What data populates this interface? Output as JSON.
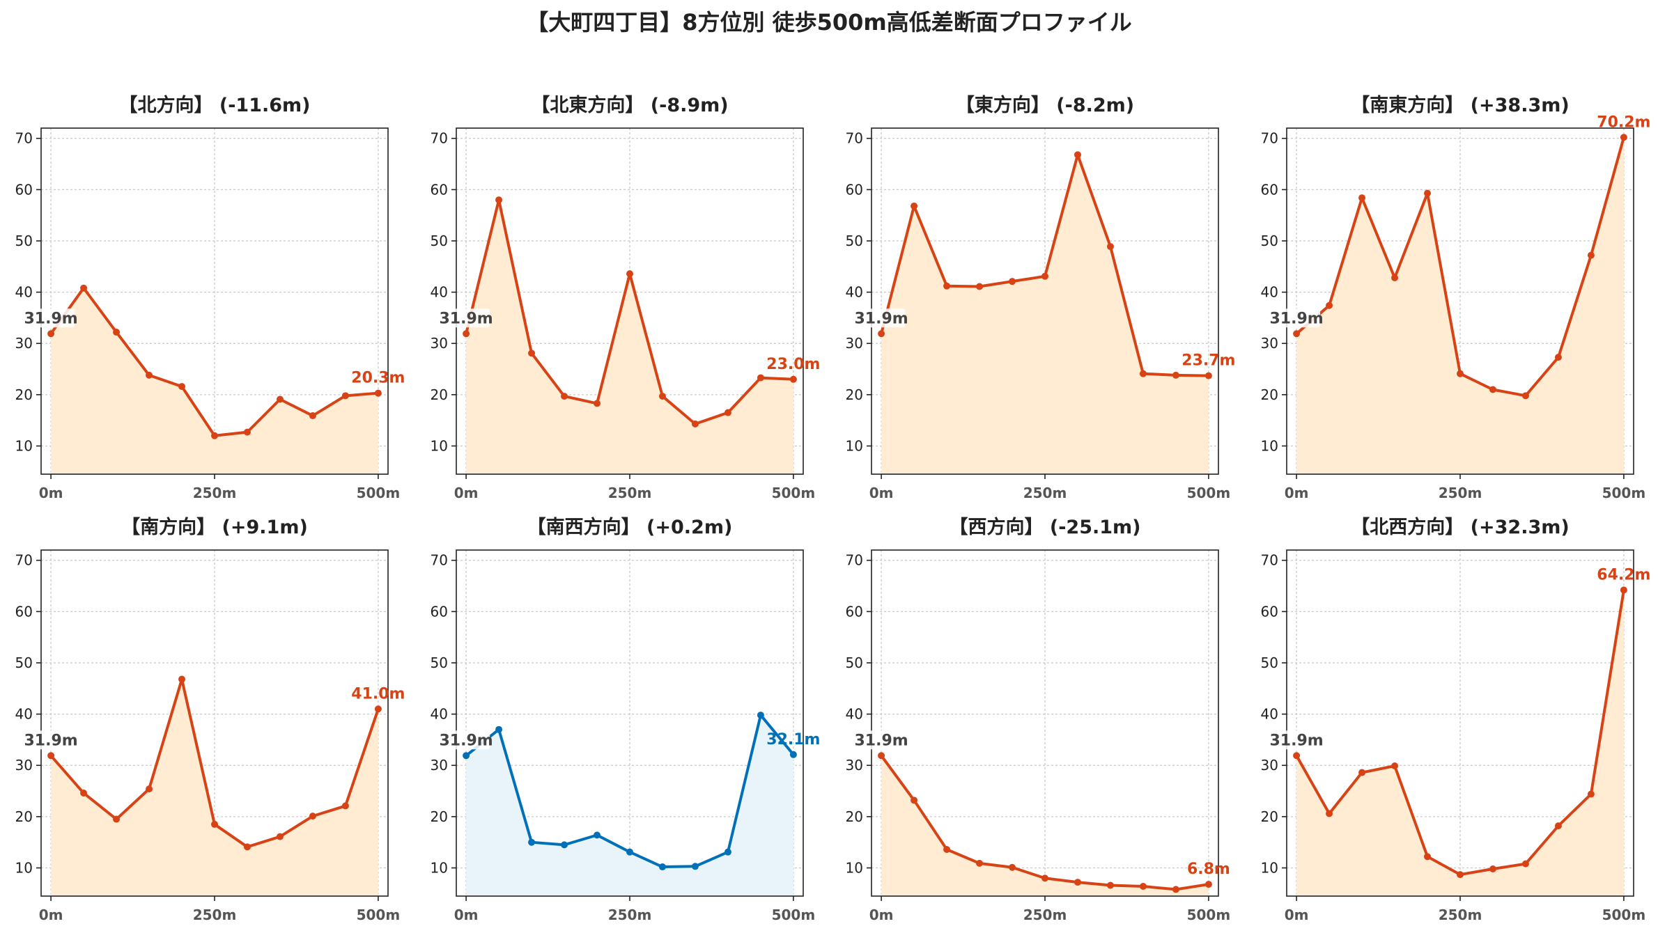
{
  "chart_data": {
    "title": "【大町四丁目】8方位別 徒歩500m高低差断面プロファイル",
    "type": "area",
    "x": [
      0,
      50,
      100,
      150,
      200,
      250,
      300,
      350,
      400,
      450,
      500
    ],
    "x_tick_values": [
      0,
      250,
      500
    ],
    "x_tick_labels": [
      "0m",
      "250m",
      "500m"
    ],
    "xlim": [
      -15,
      515
    ],
    "y_ticks": [
      10,
      20,
      30,
      40,
      50,
      60,
      70
    ],
    "ylim": [
      4.5,
      72
    ],
    "grid": true,
    "colors": {
      "orange_line": "#d84315",
      "orange_fill": "#ffecd2",
      "blue_line": "#0071b8",
      "blue_fill": "#e8f4fa",
      "start_label": "#444444"
    },
    "panels": [
      {
        "title": "【北方向】 (-11.6m)",
        "color": "orange",
        "values": [
          31.9,
          40.8,
          32.2,
          23.8,
          21.6,
          12.0,
          12.7,
          19.1,
          15.9,
          19.8,
          20.3
        ],
        "start_label": "31.9m",
        "end_label": "20.3m"
      },
      {
        "title": "【北東方向】 (-8.9m)",
        "color": "orange",
        "values": [
          31.9,
          58.0,
          28.1,
          19.7,
          18.3,
          43.6,
          19.7,
          14.3,
          16.5,
          23.3,
          23.0
        ],
        "start_label": "31.9m",
        "end_label": "23.0m"
      },
      {
        "title": "【東方向】 (-8.2m)",
        "color": "orange",
        "values": [
          31.9,
          56.8,
          41.2,
          41.1,
          42.1,
          43.1,
          66.8,
          48.9,
          24.1,
          23.8,
          23.7
        ],
        "start_label": "31.9m",
        "end_label": "23.7m"
      },
      {
        "title": "【南東方向】 (+38.3m)",
        "color": "orange",
        "values": [
          31.9,
          37.4,
          58.4,
          42.8,
          59.3,
          24.1,
          21.0,
          19.8,
          27.3,
          47.2,
          70.2
        ],
        "start_label": "31.9m",
        "end_label": "70.2m"
      },
      {
        "title": "【南方向】 (+9.1m)",
        "color": "orange",
        "values": [
          31.9,
          24.6,
          19.5,
          25.4,
          46.8,
          18.5,
          14.1,
          16.1,
          20.1,
          22.1,
          41.0
        ],
        "start_label": "31.9m",
        "end_label": "41.0m"
      },
      {
        "title": "【南西方向】 (+0.2m)",
        "color": "blue",
        "values": [
          31.9,
          37.0,
          15.0,
          14.5,
          16.4,
          13.1,
          10.2,
          10.3,
          13.1,
          39.8,
          32.1
        ],
        "start_label": "31.9m",
        "end_label": "32.1m"
      },
      {
        "title": "【西方向】 (-25.1m)",
        "color": "orange",
        "values": [
          31.9,
          23.2,
          13.6,
          10.9,
          10.1,
          8.0,
          7.2,
          6.6,
          6.4,
          5.8,
          6.8
        ],
        "start_label": "31.9m",
        "end_label": "6.8m"
      },
      {
        "title": "【北西方向】 (+32.3m)",
        "color": "orange",
        "values": [
          31.9,
          20.6,
          28.6,
          29.9,
          12.2,
          8.7,
          9.8,
          10.8,
          18.2,
          24.4,
          64.2
        ],
        "start_label": "31.9m",
        "end_label": "64.2m"
      }
    ]
  }
}
